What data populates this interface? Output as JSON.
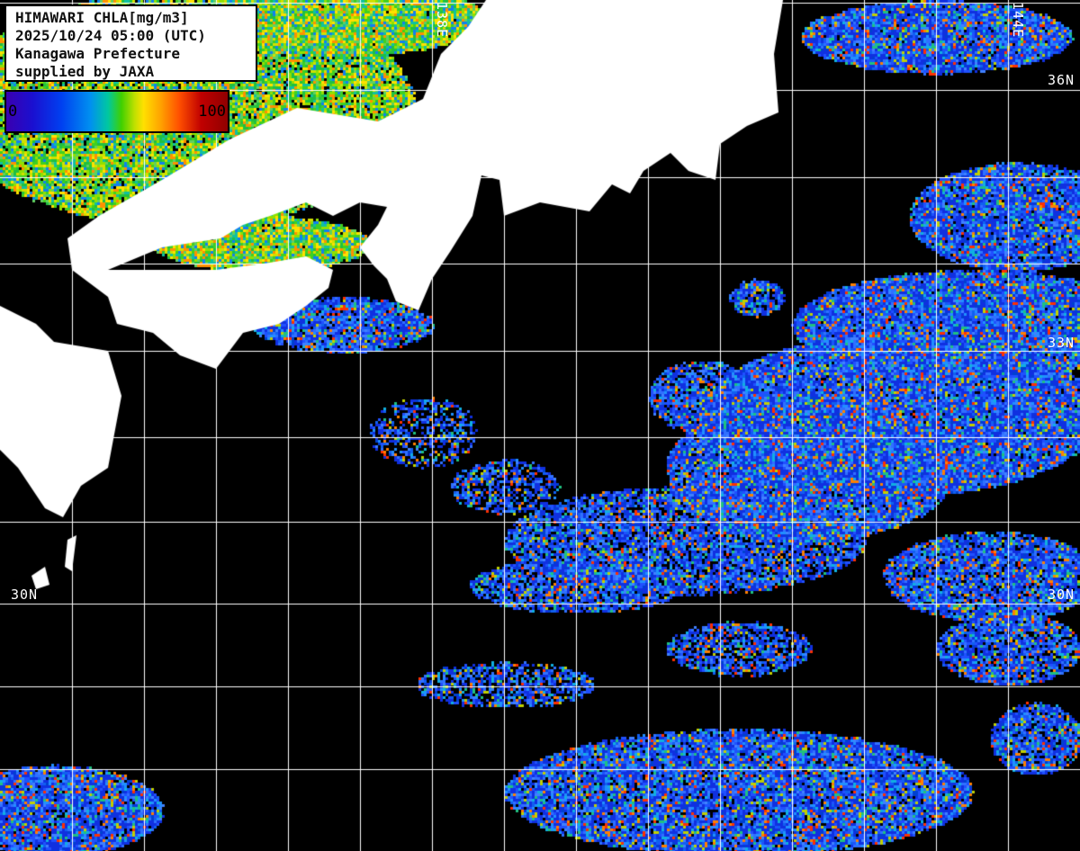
{
  "legend": {
    "title": "HIMAWARI CHLA[mg/m3]",
    "datetime": "2025/10/24 05:00 (UTC)",
    "region": "Kanagawa Prefecture",
    "credit": "supplied by JAXA"
  },
  "colorbar": {
    "min_label": "0",
    "max_label": "100",
    "colors": [
      "#3a00b0",
      "#0040f0",
      "#0090f0",
      "#40d000",
      "#ffe000",
      "#ffa000",
      "#c00000",
      "#900000"
    ]
  },
  "grid_labels": {
    "lon_138": "138E",
    "lon_144": "144E",
    "lat_36": "36N",
    "lat_33": "33N",
    "lat_30_left": "30N",
    "lat_30_right": "30N"
  },
  "colors": {
    "land": "#ffffff",
    "no_data": "#000000",
    "grid": "#ffffff"
  }
}
